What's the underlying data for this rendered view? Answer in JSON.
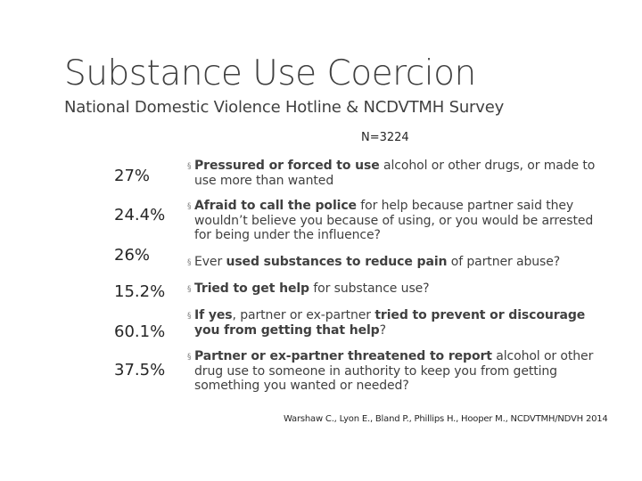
{
  "slide": {
    "title": "Substance Use Coercion",
    "subtitle": "National Domestic Violence Hotline & NCDVTMH Survey",
    "sample_size": "N=3224",
    "bullet_marker": "§",
    "rows": [
      {
        "percent": "27%",
        "text_bold_1": "Pressured or forced to use",
        "text_rest_1": " alcohol or other drugs, or made to use more than wanted",
        "text_bold_2": "",
        "text_rest_2": ""
      },
      {
        "percent": "24.4%",
        "text_bold_1": "Afraid to call the police",
        "text_rest_1": " for help because  partner said they wouldn’t believe you because of using, or you would be arrested for being under the influence?",
        "text_bold_2": "",
        "text_rest_2": ""
      },
      {
        "percent": "26%",
        "text_bold_1": "",
        "text_rest_1": "Ever ",
        "text_bold_2": "used substances to reduce pain",
        "text_rest_2": " of partner abuse?"
      },
      {
        "percent": "15.2%",
        "text_bold_1": "Tried to get help",
        "text_rest_1": " for substance use?",
        "text_bold_2": "",
        "text_rest_2": ""
      },
      {
        "percent": "60.1%",
        "text_bold_1": "If yes",
        "text_rest_1": ", partner or ex-partner ",
        "text_bold_2": "tried to prevent or discourage you from getting that help",
        "text_rest_2": "?"
      },
      {
        "percent": "37.5%",
        "text_bold_1": "Partner or ex-partner threatened to report",
        "text_rest_1": " alcohol or other drug use to someone in authority to keep you from getting something you wanted or needed?",
        "text_bold_2": "",
        "text_rest_2": ""
      }
    ],
    "citation": "Warshaw C., Lyon E., Bland P., Phillips H., Hooper M., NCDVTMH/NDVH 2014"
  }
}
